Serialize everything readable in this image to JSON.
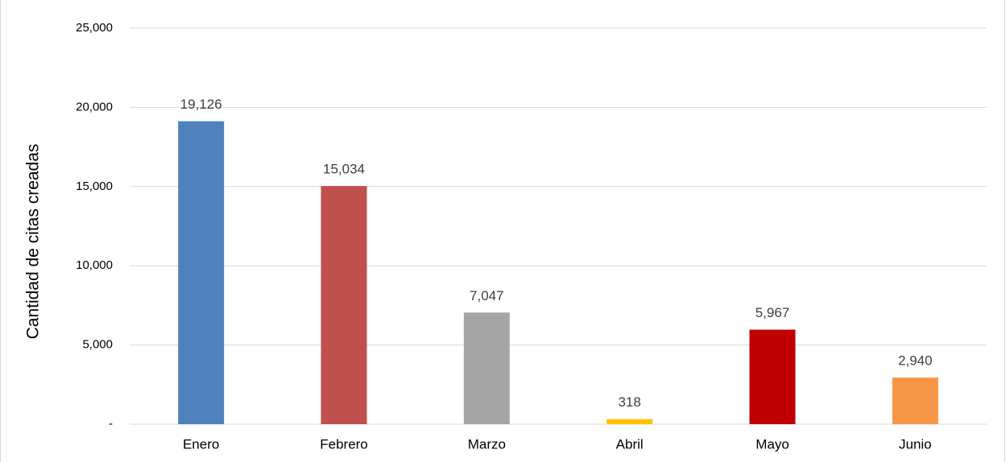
{
  "chart_data": {
    "type": "bar",
    "y_label": "Cantidad de citas creadas",
    "categories": [
      "Enero",
      "Febrero",
      "Marzo",
      "Abril",
      "Mayo",
      "Junio"
    ],
    "values": [
      19126,
      15034,
      7047,
      318,
      5967,
      2940
    ],
    "value_labels": [
      "19,126",
      "15,034",
      "7,047",
      "318",
      "5,967",
      "2,940"
    ],
    "colors": [
      "#4f81bd",
      "#c0504d",
      "#a5a5a5",
      "#ffc000",
      "#c00000",
      "#f79646"
    ],
    "ylim": [
      0,
      25000
    ],
    "yticks": [
      {
        "value": 0,
        "label": "-"
      },
      {
        "value": 5000,
        "label": "5,000"
      },
      {
        "value": 10000,
        "label": "10,000"
      },
      {
        "value": 15000,
        "label": "15,000"
      },
      {
        "value": 20000,
        "label": "20,000"
      },
      {
        "value": 25000,
        "label": "25,000"
      }
    ],
    "grid": true
  }
}
